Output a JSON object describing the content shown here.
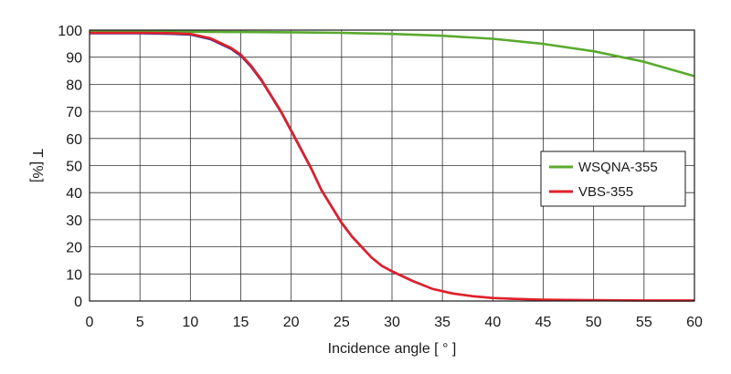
{
  "chart_data": {
    "type": "line",
    "xlabel": "Incidence angle  [ ° ]",
    "ylabel": "T [%]",
    "xlim": [
      0,
      60
    ],
    "ylim": [
      0,
      100
    ],
    "x_ticks": [
      0,
      5,
      10,
      15,
      20,
      25,
      30,
      35,
      40,
      45,
      50,
      55,
      60
    ],
    "y_ticks": [
      0,
      10,
      20,
      30,
      40,
      50,
      60,
      70,
      80,
      90,
      100
    ],
    "grid": true,
    "legend_position": "right-middle",
    "series": [
      {
        "name": "WSQNA-355",
        "color": "#5aaa2e",
        "x": [
          0,
          5,
          10,
          15,
          20,
          25,
          30,
          35,
          40,
          45,
          50,
          55,
          60
        ],
        "y": [
          99.5,
          99.5,
          99.4,
          99.3,
          99.2,
          99.0,
          98.6,
          97.9,
          96.8,
          94.9,
          92.2,
          88.3,
          83
        ]
      },
      {
        "name": "VBS-355",
        "color": "#e0202a",
        "x": [
          0,
          5,
          8,
          10,
          12,
          14,
          15,
          16,
          17,
          18,
          19,
          20,
          21,
          22,
          23,
          24,
          25,
          26,
          27,
          28,
          29,
          30,
          32,
          34,
          36,
          38,
          40,
          42,
          45,
          50,
          55,
          60
        ],
        "y": [
          99,
          99,
          98.9,
          98.6,
          97,
          93.5,
          91,
          87,
          82,
          76,
          70,
          63,
          56,
          49,
          41,
          35,
          29,
          24,
          20,
          16,
          13,
          11,
          7.5,
          4.5,
          2.8,
          1.8,
          1.1,
          0.8,
          0.5,
          0.3,
          0.2,
          0.2
        ]
      },
      {
        "color": "#3a3a8c",
        "x": [
          0,
          5,
          8,
          10,
          12,
          14,
          15,
          16,
          17,
          18,
          19,
          20,
          21,
          22,
          23,
          24,
          25,
          26,
          27,
          28,
          29,
          30,
          32,
          34,
          36,
          38,
          40,
          42,
          45,
          50,
          55,
          60
        ],
        "y": [
          98.7,
          98.7,
          98.5,
          98.2,
          96.5,
          93,
          90.4,
          86.4,
          81.4,
          75.5,
          69.5,
          62.5,
          55.5,
          48.5,
          40.6,
          34.6,
          28.6,
          23.7,
          19.7,
          15.8,
          12.8,
          10.8,
          7.3,
          4.4,
          2.7,
          1.7,
          1.0,
          0.7,
          0.4,
          0.3,
          0.2,
          0.2
        ]
      }
    ]
  }
}
